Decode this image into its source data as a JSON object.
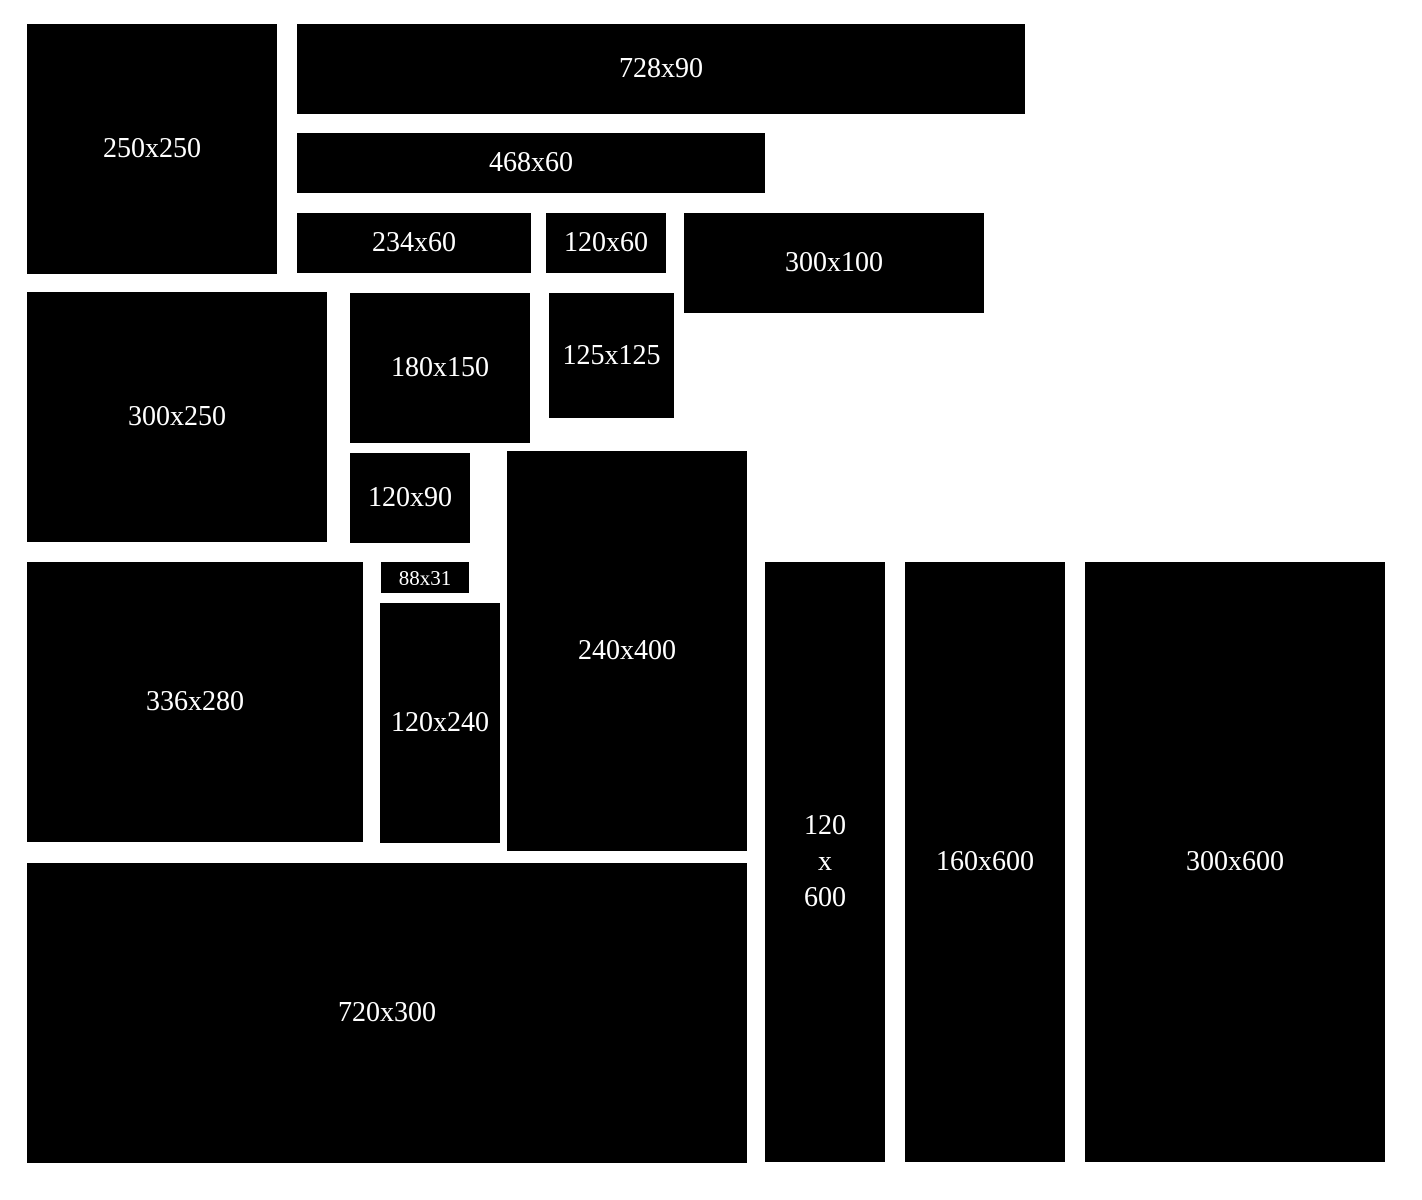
{
  "colors": {
    "box": "#000000",
    "label": "#ffffff",
    "background": "#ffffff"
  },
  "ads": {
    "a250x250": "250x250",
    "a728x90": "728x90",
    "a468x60": "468x60",
    "a234x60": "234x60",
    "a120x60": "120x60",
    "a300x100": "300x100",
    "a300x250": "300x250",
    "a180x150": "180x150",
    "a125x125": "125x125",
    "a120x90": "120x90",
    "a240x400": "240x400",
    "a88x31": "88x31",
    "a120x240": "120x240",
    "a336x280": "336x280",
    "a720x300": "720x300",
    "a120x600": "120\nx\n600",
    "a160x600": "160x600",
    "a300x600": "300x600"
  }
}
